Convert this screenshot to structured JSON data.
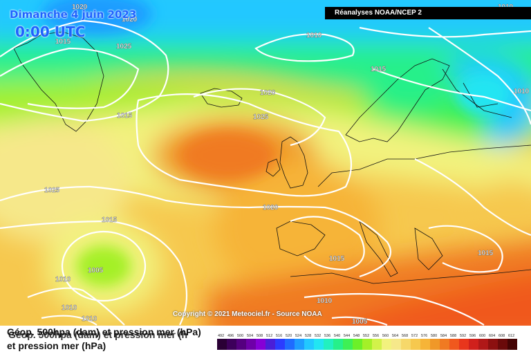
{
  "title": {
    "date": "Dimanche 4 juin 2023",
    "time": "0:00 UTC"
  },
  "banner": "Réanalyses NOAA/NCEP 2",
  "copyright": "Copyright © 2021 Meteociel.fr - Source NOAA",
  "caption": {
    "line1": "Géop. 500hpa (dam) et pression mer (hPa)",
    "line1_overlap": "Géop. 500hpa (dam) et pression mer (h",
    "line2": "et pression mer (hPa)"
  },
  "colorbar": {
    "ticks": [
      "492",
      "496",
      "500",
      "504",
      "508",
      "512",
      "516",
      "520",
      "524",
      "528",
      "532",
      "536",
      "540",
      "544",
      "548",
      "552",
      "556",
      "560",
      "564",
      "568",
      "572",
      "576",
      "580",
      "584",
      "588",
      "592",
      "596",
      "600",
      "604",
      "608",
      "612"
    ],
    "colors": [
      "#2a0035",
      "#3d005a",
      "#55007f",
      "#6e00a8",
      "#8600d6",
      "#4a1fd8",
      "#2b3cff",
      "#1f6bff",
      "#1e9cff",
      "#22c8ff",
      "#22e5f2",
      "#22f0c0",
      "#26f08a",
      "#3ef055",
      "#6cf028",
      "#a4f028",
      "#d2f24a",
      "#f2f27e",
      "#f6e88a",
      "#f6d86a",
      "#f6c84e",
      "#f6b438",
      "#f09828",
      "#f07a22",
      "#f0581e",
      "#e8361c",
      "#d0201c",
      "#b01818",
      "#8c1010",
      "#6a0a0a",
      "#440404"
    ]
  },
  "isobars": [
    {
      "label": "1020",
      "pos": "top-left"
    },
    {
      "label": "1020",
      "pos": "top-left-2"
    },
    {
      "label": "1015",
      "pos": "greenland"
    },
    {
      "label": "1025",
      "pos": "greenland-east"
    },
    {
      "label": "1010",
      "pos": "north"
    },
    {
      "label": "1010",
      "pos": "top-right"
    },
    {
      "label": "1015",
      "pos": "norway"
    },
    {
      "label": "1010",
      "pos": "russia"
    },
    {
      "label": "1020",
      "pos": "iceland"
    },
    {
      "label": "1025",
      "pos": "high-center"
    },
    {
      "label": "1015",
      "pos": "labrador"
    },
    {
      "label": "1025",
      "pos": "west-atlantic"
    },
    {
      "label": "1015",
      "pos": "mid-atlantic"
    },
    {
      "label": "1020",
      "pos": "biscay"
    },
    {
      "label": "1005",
      "pos": "low"
    },
    {
      "label": "1010",
      "pos": "low-west"
    },
    {
      "label": "1010",
      "pos": "sw-1"
    },
    {
      "label": "1010",
      "pos": "sw-2"
    },
    {
      "label": "1015",
      "pos": "mediterranean"
    },
    {
      "label": "1015",
      "pos": "greece"
    },
    {
      "label": "1010",
      "pos": "north-africa"
    },
    {
      "label": "1005",
      "pos": "sahara"
    }
  ]
}
